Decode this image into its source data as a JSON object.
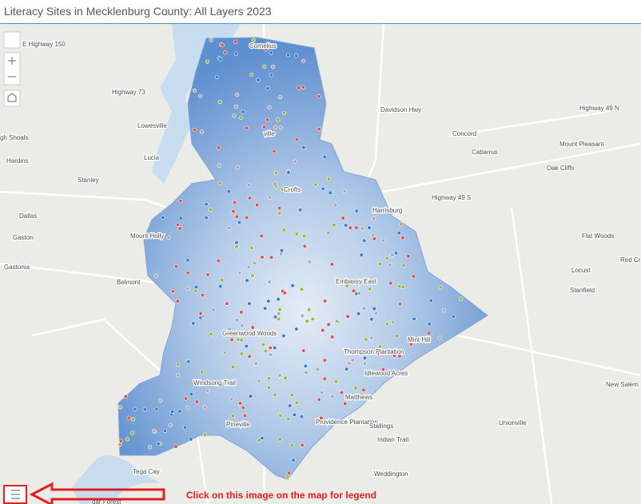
{
  "title": "Literacy Sites in Mecklenburg County: All Layers 2023",
  "places": [
    "E Highway 150",
    "Cornelius",
    "Highway 73",
    "Lowesville",
    "Davidson Hwy",
    "ville",
    "gh Shoals",
    "Hardins",
    "Lucia",
    "Stanley",
    "Concord",
    "Cabarrus",
    "Highway 49 N",
    "Mount Pleasant",
    "Oak Cliffs",
    "Crofts",
    "Harrisburg",
    "Highway 49 S",
    "Dallas",
    "Gaston",
    "Mount Holly",
    "Flat Woods",
    "Gastonia",
    "Red Cro",
    "Locust",
    "Stanfield",
    "Embassy East",
    "Belmont",
    "Mint Hill",
    "Thompson Plantation",
    "Idlewood Acres",
    "Greenwood Woods",
    "Windsong Trail",
    "Matthews",
    "New Salem",
    "Pineville",
    "Providence Plantation",
    "Stallings",
    "Indian Trail",
    "Unionville",
    "Tega Cay",
    "Weddington",
    "dar Forest"
  ],
  "legend_hint": "Click on this image on the map for legend"
}
